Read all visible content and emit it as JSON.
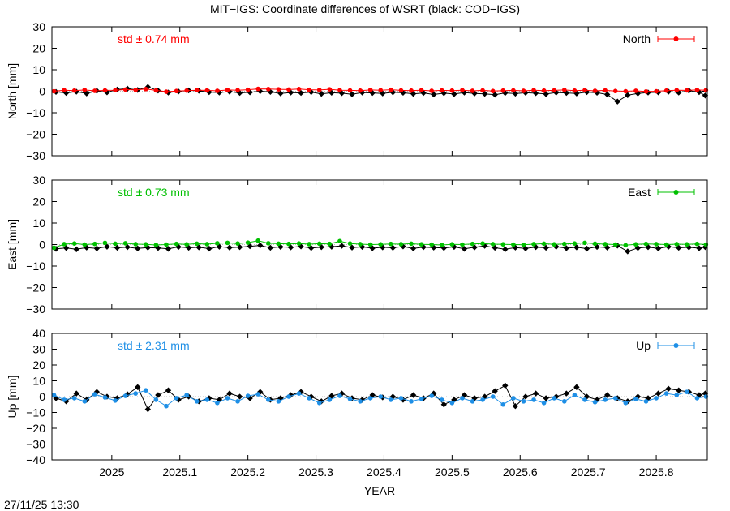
{
  "title": "MIT−IGS: Coordinate differences of WSRT (black: COD−IGS)",
  "timestamp": "27/11/25 13:30",
  "chart_data": [
    {
      "type": "scatter",
      "component": "north",
      "ylabel": "North [mm]",
      "xlabel": "",
      "xlim": [
        2024.912,
        2025.875
      ],
      "ylim": [
        -30,
        30
      ],
      "yticks": [
        -30,
        -20,
        -10,
        0,
        10,
        20,
        30
      ],
      "legend": "North",
      "legend_position": "top-right",
      "std_label": "std ± 0.74 mm",
      "color": "#ff0000",
      "series": [
        {
          "name": "North",
          "source": "MIT-IGS",
          "color": "#ff0000",
          "x": [
            2024.915,
            2024.93,
            2024.945,
            2024.96,
            2024.975,
            2024.99,
            2025.005,
            2025.02,
            2025.035,
            2025.05,
            2025.065,
            2025.08,
            2025.095,
            2025.11,
            2025.125,
            2025.14,
            2025.155,
            2025.17,
            2025.185,
            2025.2,
            2025.215,
            2025.23,
            2025.245,
            2025.26,
            2025.275,
            2025.29,
            2025.305,
            2025.32,
            2025.335,
            2025.35,
            2025.365,
            2025.38,
            2025.395,
            2025.41,
            2025.425,
            2025.44,
            2025.455,
            2025.47,
            2025.485,
            2025.5,
            2025.515,
            2025.53,
            2025.545,
            2025.56,
            2025.575,
            2025.59,
            2025.605,
            2025.62,
            2025.635,
            2025.65,
            2025.665,
            2025.68,
            2025.695,
            2025.71,
            2025.725,
            2025.74,
            2025.755,
            2025.77,
            2025.785,
            2025.8,
            2025.815,
            2025.83,
            2025.845,
            2025.86,
            2025.873
          ],
          "y": [
            0.0,
            0.5,
            0.3,
            0.6,
            0.2,
            0.4,
            0.5,
            0.8,
            0.6,
            1.0,
            0.4,
            -0.2,
            0.1,
            0.3,
            0.5,
            0.4,
            0.2,
            0.6,
            0.5,
            0.7,
            1.1,
            1.0,
            0.9,
            0.8,
            1.0,
            0.7,
            0.6,
            0.9,
            0.5,
            0.4,
            0.3,
            0.6,
            0.5,
            0.7,
            0.4,
            0.3,
            0.5,
            0.2,
            0.4,
            0.3,
            0.5,
            0.2,
            0.4,
            0.1,
            0.3,
            0.4,
            0.2,
            0.5,
            0.3,
            0.4,
            0.6,
            0.3,
            0.5,
            0.2,
            0.4,
            0.1,
            0.0,
            0.2,
            -0.1,
            0.0,
            0.3,
            0.5,
            0.4,
            0.6,
            0.5
          ]
        },
        {
          "name": "",
          "source": "COD-IGS",
          "color": "#000000",
          "x": [
            2024.918,
            2024.933,
            2024.948,
            2024.963,
            2024.978,
            2024.993,
            2025.008,
            2025.023,
            2025.038,
            2025.053,
            2025.068,
            2025.083,
            2025.098,
            2025.113,
            2025.128,
            2025.143,
            2025.158,
            2025.173,
            2025.188,
            2025.203,
            2025.218,
            2025.233,
            2025.248,
            2025.263,
            2025.278,
            2025.293,
            2025.308,
            2025.323,
            2025.338,
            2025.353,
            2025.368,
            2025.383,
            2025.398,
            2025.413,
            2025.428,
            2025.443,
            2025.458,
            2025.473,
            2025.488,
            2025.503,
            2025.518,
            2025.533,
            2025.548,
            2025.563,
            2025.578,
            2025.593,
            2025.608,
            2025.623,
            2025.638,
            2025.653,
            2025.668,
            2025.683,
            2025.698,
            2025.713,
            2025.728,
            2025.743,
            2025.758,
            2025.773,
            2025.788,
            2025.803,
            2025.818,
            2025.833,
            2025.848,
            2025.863,
            2025.872
          ],
          "y": [
            -0.3,
            -0.8,
            -0.2,
            -1.0,
            0.2,
            -0.5,
            0.8,
            1.2,
            0.6,
            2.0,
            0.3,
            -0.6,
            -0.1,
            0.4,
            0.2,
            -0.4,
            -0.6,
            -0.2,
            -0.8,
            -0.5,
            0.0,
            -0.3,
            -1.0,
            -0.6,
            -0.8,
            -0.4,
            -1.2,
            -0.7,
            -0.9,
            -1.4,
            -0.6,
            -0.8,
            -1.0,
            -0.5,
            -0.7,
            -1.2,
            -0.8,
            -1.5,
            -0.9,
            -1.3,
            -0.6,
            -1.0,
            -1.2,
            -1.6,
            -0.8,
            -1.1,
            -0.7,
            -0.9,
            -1.3,
            -0.6,
            -0.8,
            -1.0,
            -0.4,
            -0.7,
            -1.5,
            -4.8,
            -1.8,
            -1.0,
            -0.6,
            -0.5,
            -0.2,
            -0.6,
            0.3,
            -0.4,
            -2.0
          ]
        }
      ]
    },
    {
      "type": "scatter",
      "component": "east",
      "ylabel": "East [mm]",
      "xlabel": "",
      "xlim": [
        2024.912,
        2025.875
      ],
      "ylim": [
        -30,
        30
      ],
      "yticks": [
        -30,
        -20,
        -10,
        0,
        10,
        20,
        30
      ],
      "legend": "East",
      "legend_position": "top-right",
      "std_label": "std ± 0.73 mm",
      "color": "#00c000",
      "series": [
        {
          "name": "East",
          "source": "MIT-IGS",
          "color": "#00c000",
          "x": [
            2024.915,
            2024.93,
            2024.945,
            2024.96,
            2024.975,
            2024.99,
            2025.005,
            2025.02,
            2025.035,
            2025.05,
            2025.065,
            2025.08,
            2025.095,
            2025.11,
            2025.125,
            2025.14,
            2025.155,
            2025.17,
            2025.185,
            2025.2,
            2025.215,
            2025.23,
            2025.245,
            2025.26,
            2025.275,
            2025.29,
            2025.305,
            2025.32,
            2025.335,
            2025.35,
            2025.365,
            2025.38,
            2025.395,
            2025.41,
            2025.425,
            2025.44,
            2025.455,
            2025.47,
            2025.485,
            2025.5,
            2025.515,
            2025.53,
            2025.545,
            2025.56,
            2025.575,
            2025.59,
            2025.605,
            2025.62,
            2025.635,
            2025.65,
            2025.665,
            2025.68,
            2025.695,
            2025.71,
            2025.725,
            2025.74,
            2025.755,
            2025.77,
            2025.785,
            2025.8,
            2025.815,
            2025.83,
            2025.845,
            2025.86,
            2025.873
          ],
          "y": [
            -1.5,
            0.2,
            0.5,
            0.0,
            0.3,
            0.8,
            0.4,
            0.6,
            0.2,
            0.1,
            -0.2,
            0.0,
            0.3,
            0.1,
            0.4,
            0.2,
            0.6,
            0.8,
            0.5,
            0.9,
            1.8,
            0.6,
            0.4,
            0.3,
            0.5,
            0.2,
            0.4,
            0.3,
            1.6,
            0.5,
            0.2,
            0.0,
            0.1,
            0.3,
            0.2,
            0.4,
            0.1,
            0.0,
            -0.2,
            0.1,
            0.0,
            0.3,
            0.5,
            0.2,
            0.1,
            0.0,
            -0.1,
            0.2,
            0.4,
            0.1,
            0.3,
            0.5,
            0.8,
            0.4,
            0.2,
            0.0,
            -0.3,
            0.1,
            0.3,
            0.2,
            0.0,
            0.2,
            0.1,
            0.3,
            0.0
          ]
        },
        {
          "name": "",
          "source": "COD-IGS",
          "color": "#000000",
          "x": [
            2024.918,
            2024.933,
            2024.948,
            2024.963,
            2024.978,
            2024.993,
            2025.008,
            2025.023,
            2025.038,
            2025.053,
            2025.068,
            2025.083,
            2025.098,
            2025.113,
            2025.128,
            2025.143,
            2025.158,
            2025.173,
            2025.188,
            2025.203,
            2025.218,
            2025.233,
            2025.248,
            2025.263,
            2025.278,
            2025.293,
            2025.308,
            2025.323,
            2025.338,
            2025.353,
            2025.368,
            2025.383,
            2025.398,
            2025.413,
            2025.428,
            2025.443,
            2025.458,
            2025.473,
            2025.488,
            2025.503,
            2025.518,
            2025.533,
            2025.548,
            2025.563,
            2025.578,
            2025.593,
            2025.608,
            2025.623,
            2025.638,
            2025.653,
            2025.668,
            2025.683,
            2025.698,
            2025.713,
            2025.728,
            2025.743,
            2025.758,
            2025.773,
            2025.788,
            2025.803,
            2025.818,
            2025.833,
            2025.848,
            2025.863,
            2025.872
          ],
          "y": [
            -2.0,
            -1.6,
            -2.2,
            -1.4,
            -1.8,
            -1.0,
            -1.5,
            -1.2,
            -1.8,
            -1.4,
            -1.6,
            -2.0,
            -1.1,
            -1.5,
            -1.3,
            -1.9,
            -1.0,
            -1.4,
            -1.2,
            -0.8,
            -0.4,
            -1.5,
            -1.1,
            -1.3,
            -0.9,
            -1.6,
            -1.2,
            -1.0,
            -0.6,
            -1.4,
            -1.1,
            -1.7,
            -1.3,
            -1.5,
            -0.9,
            -1.8,
            -1.2,
            -1.4,
            -1.6,
            -1.1,
            -2.0,
            -1.3,
            -0.6,
            -1.5,
            -2.2,
            -1.4,
            -1.8,
            -1.2,
            -1.5,
            -1.0,
            -1.7,
            -1.3,
            -1.9,
            -1.1,
            -1.4,
            -0.5,
            -3.2,
            -1.6,
            -1.2,
            -1.8,
            -1.0,
            -1.5,
            -1.3,
            -1.7,
            -1.2
          ]
        }
      ]
    },
    {
      "type": "scatter",
      "component": "up",
      "ylabel": "Up [mm]",
      "xlabel": "YEAR",
      "xlim": [
        2024.912,
        2025.875
      ],
      "ylim": [
        -40,
        40
      ],
      "yticks": [
        -40,
        -30,
        -20,
        -10,
        0,
        10,
        20,
        30,
        40
      ],
      "xticks": [
        2025,
        2025.1,
        2025.2,
        2025.3,
        2025.4,
        2025.5,
        2025.6,
        2025.7,
        2025.8
      ],
      "xtick_labels": [
        "2025",
        "2025.1",
        "2025.2",
        "2025.3",
        "2025.4",
        "2025.5",
        "2025.6",
        "2025.7",
        "2025.8"
      ],
      "legend": "Up",
      "legend_position": "top-right",
      "std_label": "std ± 2.31 mm",
      "color": "#1e8fe6",
      "series": [
        {
          "name": "Up",
          "source": "MIT-IGS",
          "color": "#1e8fe6",
          "x": [
            2024.915,
            2024.93,
            2024.945,
            2024.96,
            2024.975,
            2024.99,
            2025.005,
            2025.02,
            2025.035,
            2025.05,
            2025.065,
            2025.08,
            2025.095,
            2025.11,
            2025.125,
            2025.14,
            2025.155,
            2025.17,
            2025.185,
            2025.2,
            2025.215,
            2025.23,
            2025.245,
            2025.26,
            2025.275,
            2025.29,
            2025.305,
            2025.32,
            2025.335,
            2025.35,
            2025.365,
            2025.38,
            2025.395,
            2025.41,
            2025.425,
            2025.44,
            2025.455,
            2025.47,
            2025.485,
            2025.5,
            2025.515,
            2025.53,
            2025.545,
            2025.56,
            2025.575,
            2025.59,
            2025.605,
            2025.62,
            2025.635,
            2025.65,
            2025.665,
            2025.68,
            2025.695,
            2025.71,
            2025.725,
            2025.74,
            2025.755,
            2025.77,
            2025.785,
            2025.8,
            2025.815,
            2025.83,
            2025.845,
            2025.86,
            2025.873
          ],
          "y": [
            1.0,
            -2.0,
            -1.0,
            -3.0,
            1.5,
            -0.5,
            -2.5,
            0.5,
            2.0,
            4.0,
            -2.0,
            -6.0,
            -1.0,
            1.0,
            -3.0,
            -2.0,
            -4.0,
            -1.0,
            -3.0,
            0.5,
            1.5,
            -2.0,
            -3.0,
            0.0,
            2.0,
            -1.0,
            -4.0,
            -2.0,
            0.5,
            -1.5,
            -3.0,
            -1.0,
            0.0,
            -2.0,
            -1.0,
            -3.0,
            -1.5,
            0.5,
            -2.0,
            -4.0,
            -1.0,
            -3.0,
            -2.0,
            0.0,
            -5.0,
            -1.0,
            -3.0,
            -2.0,
            -4.0,
            -1.0,
            -3.0,
            1.0,
            -2.0,
            -3.5,
            -2.0,
            -1.0,
            -4.0,
            -1.5,
            -3.0,
            -1.0,
            2.0,
            1.0,
            3.0,
            -1.0,
            0.0
          ]
        },
        {
          "name": "",
          "source": "COD-IGS",
          "color": "#000000",
          "x": [
            2024.918,
            2024.933,
            2024.948,
            2024.963,
            2024.978,
            2024.993,
            2025.008,
            2025.023,
            2025.038,
            2025.053,
            2025.068,
            2025.083,
            2025.098,
            2025.113,
            2025.128,
            2025.143,
            2025.158,
            2025.173,
            2025.188,
            2025.203,
            2025.218,
            2025.233,
            2025.248,
            2025.263,
            2025.278,
            2025.293,
            2025.308,
            2025.323,
            2025.338,
            2025.353,
            2025.368,
            2025.383,
            2025.398,
            2025.413,
            2025.428,
            2025.443,
            2025.458,
            2025.473,
            2025.488,
            2025.503,
            2025.518,
            2025.533,
            2025.548,
            2025.563,
            2025.578,
            2025.593,
            2025.608,
            2025.623,
            2025.638,
            2025.653,
            2025.668,
            2025.683,
            2025.698,
            2025.713,
            2025.728,
            2025.743,
            2025.758,
            2025.773,
            2025.788,
            2025.803,
            2025.818,
            2025.833,
            2025.848,
            2025.863,
            2025.872
          ],
          "y": [
            -1.0,
            -3.0,
            2.0,
            -2.0,
            3.0,
            0.0,
            -1.0,
            1.5,
            6.0,
            -8.0,
            1.0,
            4.0,
            -2.0,
            0.0,
            -3.0,
            -1.0,
            -2.0,
            2.0,
            0.0,
            -1.0,
            3.0,
            -2.0,
            -1.0,
            1.0,
            3.0,
            0.0,
            -3.0,
            0.5,
            2.0,
            -1.0,
            -2.0,
            1.0,
            -0.5,
            0.0,
            -2.0,
            1.0,
            -1.0,
            2.0,
            -5.0,
            -2.0,
            1.0,
            -1.0,
            0.0,
            3.5,
            7.0,
            -6.0,
            0.0,
            2.0,
            -1.0,
            0.0,
            2.0,
            6.0,
            0.0,
            -2.0,
            1.0,
            -1.0,
            -3.0,
            0.0,
            -1.0,
            2.0,
            5.0,
            4.0,
            3.0,
            1.0,
            2.0
          ]
        }
      ]
    }
  ]
}
